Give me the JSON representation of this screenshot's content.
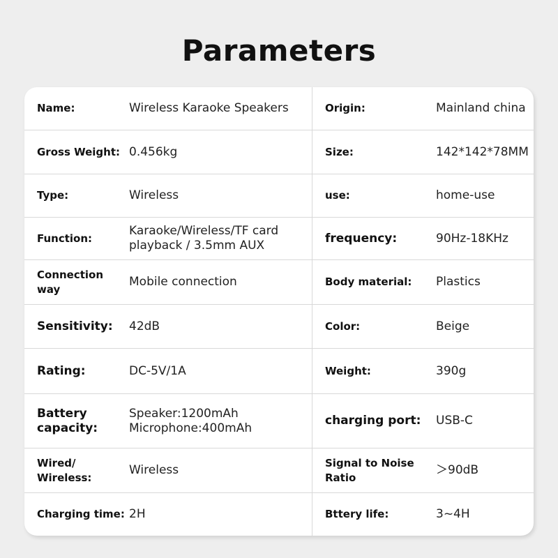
{
  "title": "Parameters",
  "rows": [
    {
      "left_label": "Name:",
      "left_value": "Wireless Karaoke Speakers",
      "right_label": "Origin:",
      "right_value": "Mainland china"
    },
    {
      "left_label": "Gross Weight:",
      "left_value": "0.456kg",
      "right_label": "Size:",
      "right_value": "142*142*78MM"
    },
    {
      "left_label": "Type:",
      "left_value": "Wireless",
      "right_label": "use:",
      "right_value": "home-use"
    },
    {
      "left_label": "Function:",
      "left_value": "Karaoke/Wireless/TF card playback / 3.5mm AUX",
      "right_label": "frequency:",
      "right_value": "90Hz-18KHz"
    },
    {
      "left_label": "Connection way",
      "left_value": "Mobile connection",
      "right_label": "Body material:",
      "right_value": "Plastics"
    },
    {
      "left_label": "Sensitivity:",
      "left_value": "42dB",
      "right_label": "Color:",
      "right_value": "Beige"
    },
    {
      "left_label": "Rating:",
      "left_value": "DC-5V/1A",
      "right_label": "Weight:",
      "right_value": "390g"
    },
    {
      "left_label": "Battery capacity:",
      "left_value": "Speaker:1200mAh Microphone:400mAh",
      "right_label": "charging port:",
      "right_value": "USB-C"
    },
    {
      "left_label": "Wired/ Wireless:",
      "left_value": "Wireless",
      "right_label": "Signal to Noise Ratio",
      "right_value": "＞90dB"
    },
    {
      "left_label": "Charging time:",
      "left_value": "2H",
      "right_label": "Bttery life:",
      "right_value": "3~4H"
    }
  ]
}
